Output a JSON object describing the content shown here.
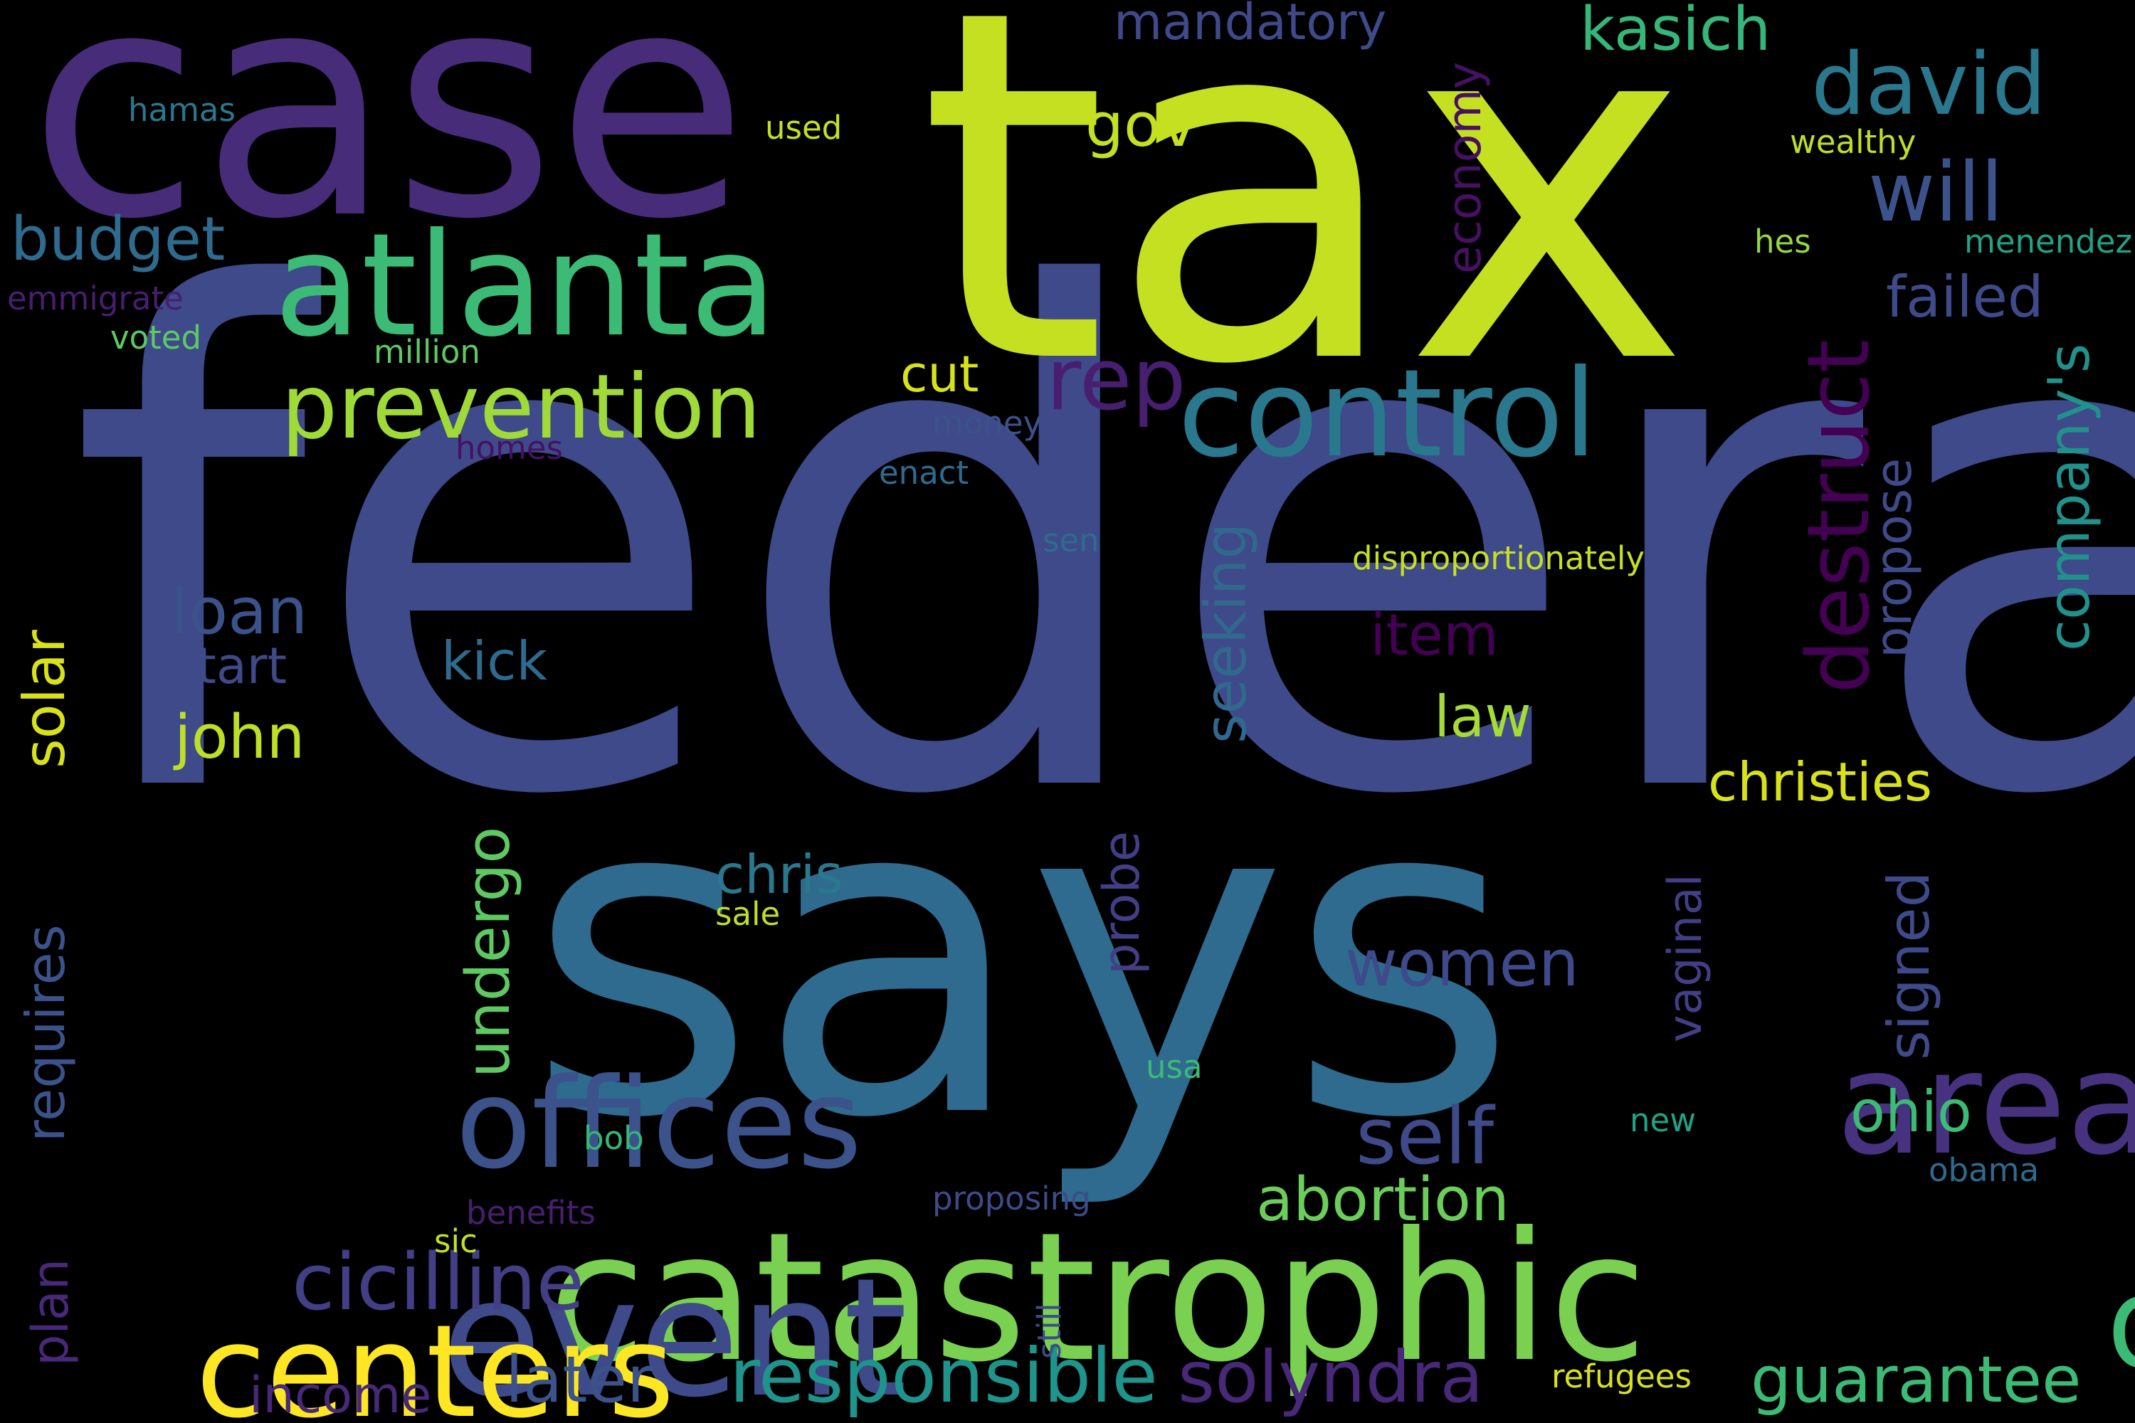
{
  "cloud": {
    "background": "#000000",
    "words": [
      {
        "text": "federal",
        "color": "#3e4a89"
      },
      {
        "text": "tax",
        "color": "#c5e021"
      },
      {
        "text": "case",
        "color": "#472c7a"
      },
      {
        "text": "says",
        "color": "#2e6b8e"
      },
      {
        "text": "catastrophic",
        "color": "#7ad151"
      },
      {
        "text": "atlanta",
        "color": "#3bbb75"
      },
      {
        "text": "event",
        "color": "#3e4a89"
      },
      {
        "text": "control",
        "color": "#2a788e"
      },
      {
        "text": "prevention",
        "color": "#a0da39"
      },
      {
        "text": "offices",
        "color": "#3b528b"
      },
      {
        "text": "centers",
        "color": "#fde725"
      },
      {
        "text": "area",
        "color": "#46327e"
      },
      {
        "text": "disease",
        "color": "#3bbb75"
      },
      {
        "text": "cicilline",
        "color": "#433e85"
      },
      {
        "text": "responsible",
        "color": "#1f948c"
      },
      {
        "text": "solyndra",
        "color": "#482878"
      },
      {
        "text": "guarantee",
        "color": "#3bbb75"
      },
      {
        "text": "david",
        "color": "#2a788e"
      },
      {
        "text": "will",
        "color": "#3b528b"
      },
      {
        "text": "kasich",
        "color": "#35b779"
      },
      {
        "text": "mandatory",
        "color": "#3e4a89"
      },
      {
        "text": "budget",
        "color": "#2e6b8e"
      },
      {
        "text": "rep",
        "color": "#481f70"
      },
      {
        "text": "gov",
        "color": "#c5e021"
      },
      {
        "text": "failed",
        "color": "#3e4a89"
      },
      {
        "text": "destruct",
        "color": "#440154"
      },
      {
        "text": "economy",
        "color": "#471063"
      },
      {
        "text": "company's",
        "color": "#21918c"
      },
      {
        "text": "propose",
        "color": "#3e4a89"
      },
      {
        "text": "seeking",
        "color": "#31688e"
      },
      {
        "text": "item",
        "color": "#440154"
      },
      {
        "text": "loan",
        "color": "#3b528b"
      },
      {
        "text": "start",
        "color": "#3e4a89"
      },
      {
        "text": "kick",
        "color": "#2e6b8e"
      },
      {
        "text": "john",
        "color": "#bddf26"
      },
      {
        "text": "law",
        "color": "#a5db36"
      },
      {
        "text": "solar",
        "color": "#d8e219"
      },
      {
        "text": "requires",
        "color": "#3b528b"
      },
      {
        "text": "undergo",
        "color": "#5ec962"
      },
      {
        "text": "probe",
        "color": "#433e85"
      },
      {
        "text": "chris",
        "color": "#2a788e"
      },
      {
        "text": "women",
        "color": "#3e4a89"
      },
      {
        "text": "christies",
        "color": "#d8e219"
      },
      {
        "text": "signed",
        "color": "#3e4a89"
      },
      {
        "text": "vaginal",
        "color": "#433e85"
      },
      {
        "text": "ohio",
        "color": "#3bbb75"
      },
      {
        "text": "self",
        "color": "#3e4a89"
      },
      {
        "text": "abortion",
        "color": "#6ccd5a"
      },
      {
        "text": "later",
        "color": "#3b528b"
      },
      {
        "text": "income",
        "color": "#482878"
      },
      {
        "text": "plan",
        "color": "#482878"
      },
      {
        "text": "cut",
        "color": "#d8e219"
      },
      {
        "text": "hamas",
        "color": "#2a788e"
      },
      {
        "text": "used",
        "color": "#c5e021"
      },
      {
        "text": "wealthy",
        "color": "#bddf26"
      },
      {
        "text": "hes",
        "color": "#95d840"
      },
      {
        "text": "menendez",
        "color": "#20a386"
      },
      {
        "text": "emmigrate",
        "color": "#481f70"
      },
      {
        "text": "voted",
        "color": "#5ec962"
      },
      {
        "text": "million",
        "color": "#5ec962"
      },
      {
        "text": "homes",
        "color": "#471063"
      },
      {
        "text": "money",
        "color": "#3b528b"
      },
      {
        "text": "enact",
        "color": "#2e6b8e"
      },
      {
        "text": "sen",
        "color": "#2e6b8e"
      },
      {
        "text": "disproportionately",
        "color": "#c5e021"
      },
      {
        "text": "sale",
        "color": "#bddf26"
      },
      {
        "text": "usa",
        "color": "#3bbb75"
      },
      {
        "text": "bob",
        "color": "#35b779"
      },
      {
        "text": "new",
        "color": "#20a386"
      },
      {
        "text": "obama",
        "color": "#2e6b8e"
      },
      {
        "text": "benefits",
        "color": "#481f70"
      },
      {
        "text": "sic",
        "color": "#c5e021"
      },
      {
        "text": "proposing",
        "color": "#3e4a89"
      },
      {
        "text": "still",
        "color": "#3e4a89"
      },
      {
        "text": "refugees",
        "color": "#d8e219"
      }
    ]
  }
}
